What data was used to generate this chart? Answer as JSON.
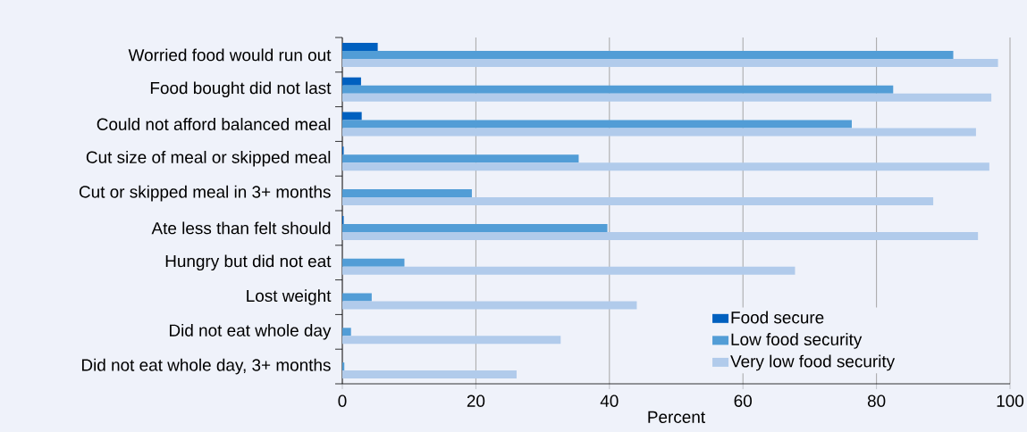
{
  "chart_data": {
    "type": "bar",
    "orientation": "horizontal",
    "xlabel": "Percent",
    "categories": [
      "Worried food would run out",
      "Food bought did not last",
      "Could not afford balanced meal",
      "Cut size of meal or skipped meal",
      "Cut or skipped meal in 3+ months",
      "Ate less than felt should",
      "Hungry but did not eat",
      "Lost weight",
      "Did not eat whole day",
      "Did not eat whole day, 3+ months"
    ],
    "series": [
      {
        "name": "Food secure",
        "color": "#0060bf",
        "values": [
          5.3,
          2.8,
          2.9,
          0.2,
          0,
          0.2,
          0,
          0,
          0,
          0
        ]
      },
      {
        "name": "Low food security",
        "color": "#529dd6",
        "values": [
          91.5,
          82.5,
          76.3,
          35.4,
          19.4,
          39.7,
          9.3,
          4.4,
          1.3,
          0.3
        ]
      },
      {
        "name": "Very low food security",
        "color": "#b1cbeb",
        "values": [
          98.2,
          97.2,
          94.9,
          96.9,
          88.5,
          95.2,
          67.8,
          44.1,
          32.7,
          26.1
        ]
      }
    ],
    "xlim": [
      0,
      100
    ],
    "xticks": [
      0,
      20,
      40,
      60,
      80,
      100
    ],
    "grid": "x",
    "legend": "bottom right"
  }
}
